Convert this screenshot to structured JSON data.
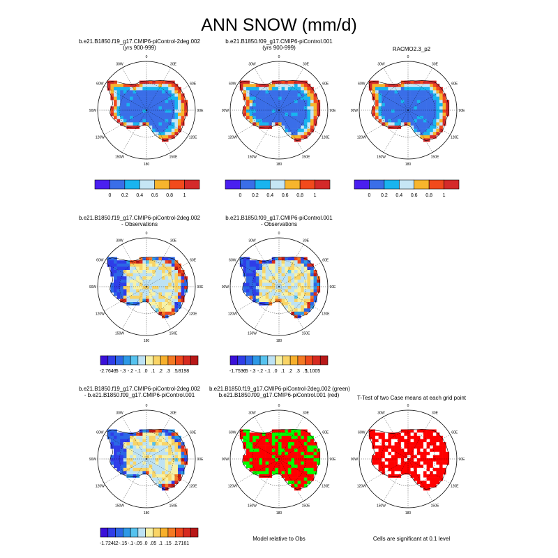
{
  "title": "ANN SNOW (mm/d)",
  "lon_labels": [
    "0",
    "30E",
    "60E",
    "90E",
    "120E",
    "150E",
    "180",
    "150W",
    "120W",
    "90W",
    "60W",
    "30W"
  ],
  "colors": {
    "abs": [
      "#4a1ff0",
      "#3a6ee8",
      "#19b4ef",
      "#c6e6f5",
      "#f7b52d",
      "#f24a1c",
      "#d42a2a"
    ],
    "diff": [
      "#3a10d8",
      "#2f3de8",
      "#2c66e6",
      "#2d99e6",
      "#56c2ee",
      "#bde2f4",
      "#f7f1a6",
      "#f9d466",
      "#f7b02c",
      "#f47a24",
      "#ee4a1c",
      "#d62a20",
      "#b81818"
    ],
    "green": "#00ff00",
    "red": "#ff0000"
  },
  "chart_data": [
    {
      "id": "p1",
      "type": "heatmap",
      "title": "b.e21.B1850.f19_g17.CMIP6-piControl-2deg.002",
      "subtitle": "(yrs 900-999)",
      "palette": "abs",
      "colorbar_ticks": [
        "0",
        "0.2",
        "0.4",
        "0.6",
        "0.8",
        "1"
      ]
    },
    {
      "id": "p2",
      "type": "heatmap",
      "title": "b.e21.B1850.f09_g17.CMIP6-piControl.001",
      "subtitle": "(yrs 900-999)",
      "palette": "abs",
      "colorbar_ticks": [
        "0",
        "0.2",
        "0.4",
        "0.6",
        "0.8",
        "1"
      ]
    },
    {
      "id": "p3",
      "type": "heatmap",
      "title": "RACMO2.3_p2",
      "subtitle": "",
      "palette": "abs",
      "colorbar_ticks": [
        "0",
        "0.2",
        "0.4",
        "0.6",
        "0.8",
        "1"
      ]
    },
    {
      "id": "p4",
      "type": "heatmap",
      "title": "b.e21.B1850.f19_g17.CMIP6-piControl-2deg.002",
      "subtitle": "- Observations",
      "palette": "diff",
      "colorbar_ticks": [
        "-2.7643",
        "-.5",
        "-.3",
        "-.2",
        "-.1",
        ".0",
        ".1",
        ".2",
        ".3",
        ".5",
        ".8198"
      ]
    },
    {
      "id": "p5",
      "type": "heatmap",
      "title": "b.e21.B1850.f09_g17.CMIP6-piControl.001",
      "subtitle": "- Observations",
      "palette": "diff",
      "colorbar_ticks": [
        "-1.7536",
        "-.5",
        "-.3",
        "-.2",
        "-.1",
        ".0",
        ".1",
        ".2",
        ".3",
        ".5",
        "1.1005"
      ]
    },
    {
      "id": "p6",
      "type": "heatmap",
      "title": "b.e21.B1850.f19_g17.CMIP6-piControl-2deg.002",
      "subtitle": "- b.e21.B1850.f09_g17.CMIP6-piControl.001",
      "palette": "diff",
      "colorbar_ticks": [
        "-1.7241",
        "-.2",
        "-.15",
        "-.1",
        "-.05",
        ".0",
        ".05",
        ".1",
        ".15",
        ".2",
        ".7161"
      ]
    },
    {
      "id": "p7",
      "type": "heatmap",
      "title": "b.e21.B1850.f19_g17.CMIP6-piControl-2deg.002 (green)",
      "subtitle": "b.e21.B1850.f09_g17.CMIP6-piControl.001 (red)",
      "palette": "greenred",
      "footer": "Model relative to Obs"
    },
    {
      "id": "p8",
      "type": "heatmap",
      "title": "T-Test of two Case means at each grid point",
      "subtitle": "",
      "palette": "red",
      "footer": "Cells are significant at 0.1 level"
    }
  ]
}
